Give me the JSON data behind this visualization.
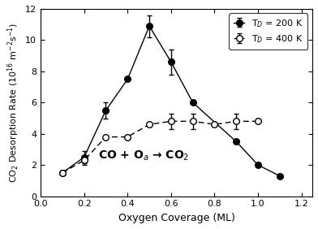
{
  "black_x": [
    0.1,
    0.2,
    0.3,
    0.4,
    0.5,
    0.6,
    0.7,
    0.9,
    1.0,
    1.1
  ],
  "black_y": [
    1.5,
    2.5,
    5.5,
    7.5,
    10.9,
    8.6,
    6.0,
    3.5,
    2.0,
    1.3
  ],
  "black_yerr": [
    0.0,
    0.4,
    0.5,
    0.0,
    0.7,
    0.8,
    0.0,
    0.0,
    0.0,
    0.0
  ],
  "open_x": [
    0.1,
    0.2,
    0.3,
    0.4,
    0.5,
    0.6,
    0.7,
    0.8,
    0.9,
    1.0
  ],
  "open_y": [
    1.5,
    2.3,
    3.8,
    3.8,
    4.6,
    4.8,
    4.8,
    4.6,
    4.8,
    4.8
  ],
  "open_yerr": [
    0.0,
    0.3,
    0.0,
    0.0,
    0.0,
    0.5,
    0.5,
    0.0,
    0.5,
    0.0
  ],
  "xlabel": "Oxygen Coverage (ML)",
  "ylabel": "CO$_2$ Desorption Rate (10$^{16}$ m$^{-2}$s$^{-1}$)",
  "annotation": "CO + O$_a$ → CO$_2$",
  "legend_label_black": "T$_D$ = 200 K",
  "legend_label_open": "T$_D$ = 400 K",
  "xlim": [
    0.0,
    1.25
  ],
  "ylim": [
    0,
    12
  ],
  "xticks": [
    0.0,
    0.2,
    0.4,
    0.6,
    0.8,
    1.0,
    1.2
  ],
  "yticks": [
    0,
    2,
    4,
    6,
    8,
    10,
    12
  ],
  "background_color": "#ffffff"
}
